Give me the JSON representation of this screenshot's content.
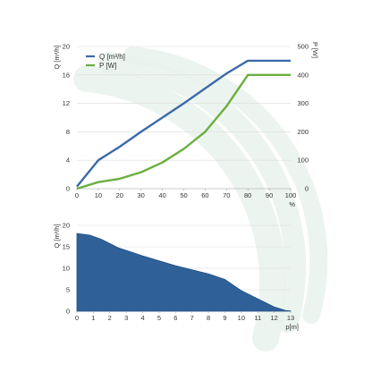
{
  "colors": {
    "q_line": "#3b6aa8",
    "p_line": "#6aaf3f",
    "area_fill": "#2f6198",
    "watermark": "#e9f2ec",
    "grid": "#dcdcdc",
    "axis": "#999999"
  },
  "chart_data": [
    {
      "type": "line",
      "x": [
        0,
        10,
        20,
        30,
        40,
        50,
        60,
        70,
        80,
        90,
        100
      ],
      "xlabel": "%",
      "ylabel_left": "Q [m³/h]",
      "ylabel_right": "P [W]",
      "xlim": [
        0,
        100
      ],
      "ylim_left": [
        0,
        20
      ],
      "ylim_right": [
        0,
        500
      ],
      "x_ticks": [
        "0",
        "10",
        "20",
        "30",
        "40",
        "50",
        "60",
        "70",
        "80",
        "90",
        "100"
      ],
      "y_ticks_left": [
        "0",
        "4",
        "8",
        "12",
        "16",
        "20"
      ],
      "y_ticks_right": [
        "0",
        "100",
        "200",
        "300",
        "400",
        "500"
      ],
      "grid": "horizontal",
      "legend_position": "top-left",
      "series": [
        {
          "name": "Q [m³/h]",
          "axis": "left",
          "values": [
            0.3,
            4.0,
            5.9,
            8.0,
            10.0,
            12.0,
            14.1,
            16.2,
            18.0,
            18.0,
            18.0
          ]
        },
        {
          "name": "P [W]",
          "axis": "right",
          "values": [
            0,
            23,
            35,
            58,
            92,
            140,
            200,
            290,
            400,
            400,
            400
          ]
        }
      ]
    },
    {
      "type": "area",
      "x": [
        0,
        0.8,
        1.5,
        2.5,
        4,
        6,
        8,
        9,
        10,
        12,
        12.7,
        13
      ],
      "values": [
        18.1,
        17.7,
        16.7,
        14.8,
        12.9,
        10.6,
        8.7,
        7.4,
        4.8,
        1.0,
        0.15,
        0.05
      ],
      "xlabel": "p[m]",
      "ylabel": "Q [m³/h]",
      "xlim": [
        0,
        13
      ],
      "ylim": [
        0,
        20
      ],
      "x_ticks": [
        "0",
        "1",
        "2",
        "3",
        "4",
        "5",
        "6",
        "7",
        "8",
        "9",
        "10",
        "11",
        "12",
        "13"
      ],
      "y_ticks": [
        "0",
        "5",
        "10",
        "15",
        "20"
      ],
      "grid": "horizontal"
    }
  ]
}
